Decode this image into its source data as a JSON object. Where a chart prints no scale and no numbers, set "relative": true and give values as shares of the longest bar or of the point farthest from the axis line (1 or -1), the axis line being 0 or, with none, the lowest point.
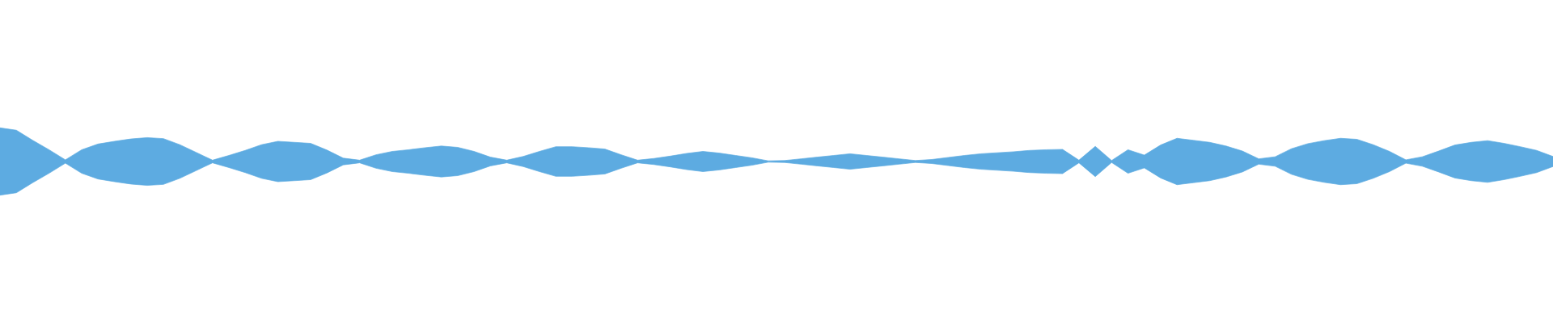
{
  "chart_data": {
    "type": "area",
    "relative": true,
    "categories": [
      null,
      null,
      null,
      null,
      null,
      null,
      null,
      null,
      null,
      null,
      null,
      null,
      null,
      null,
      null,
      null,
      null,
      null,
      null,
      null,
      null,
      null,
      null,
      null,
      null,
      null,
      null,
      null,
      null,
      null,
      null,
      null,
      null,
      null,
      null,
      null,
      null,
      null,
      null,
      null,
      null,
      null,
      null,
      null,
      null,
      null,
      null,
      null,
      null,
      null,
      null,
      null,
      null,
      null,
      null,
      null,
      null,
      null,
      null,
      null,
      null,
      null,
      null,
      null,
      null,
      null,
      null,
      null,
      null,
      null,
      null,
      null,
      null,
      null,
      null,
      null,
      null,
      null,
      null,
      null,
      null,
      null,
      null,
      null,
      null,
      null,
      null,
      null,
      null,
      null,
      null,
      null,
      null,
      null,
      null,
      null
    ],
    "series": [
      {
        "color": "#5dabe1",
        "values": [
          1.0,
          0.93,
          0.63,
          0.35,
          0.05,
          0.35,
          0.52,
          0.6,
          0.67,
          0.71,
          0.68,
          0.5,
          0.27,
          0.04,
          0.18,
          0.33,
          0.5,
          0.6,
          0.57,
          0.54,
          0.34,
          0.1,
          0.04,
          0.2,
          0.3,
          0.35,
          0.41,
          0.46,
          0.42,
          0.3,
          0.13,
          0.04,
          0.15,
          0.3,
          0.44,
          0.44,
          0.41,
          0.37,
          0.2,
          0.04,
          0.09,
          0.16,
          0.24,
          0.3,
          0.25,
          0.18,
          0.11,
          0.02,
          0.03,
          0.08,
          0.13,
          0.18,
          0.23,
          0.18,
          0.13,
          0.08,
          0.03,
          0.06,
          0.12,
          0.18,
          0.23,
          0.26,
          0.29,
          0.33,
          0.35,
          0.36,
          0.04,
          0.45,
          0.03,
          0.35,
          0.19,
          0.49,
          0.69,
          0.63,
          0.57,
          0.46,
          0.31,
          0.08,
          0.14,
          0.38,
          0.53,
          0.62,
          0.69,
          0.66,
          0.5,
          0.3,
          0.05,
          0.14,
          0.31,
          0.49,
          0.57,
          0.62,
          0.54,
          0.44,
          0.33,
          0.15
        ]
      }
    ]
  }
}
